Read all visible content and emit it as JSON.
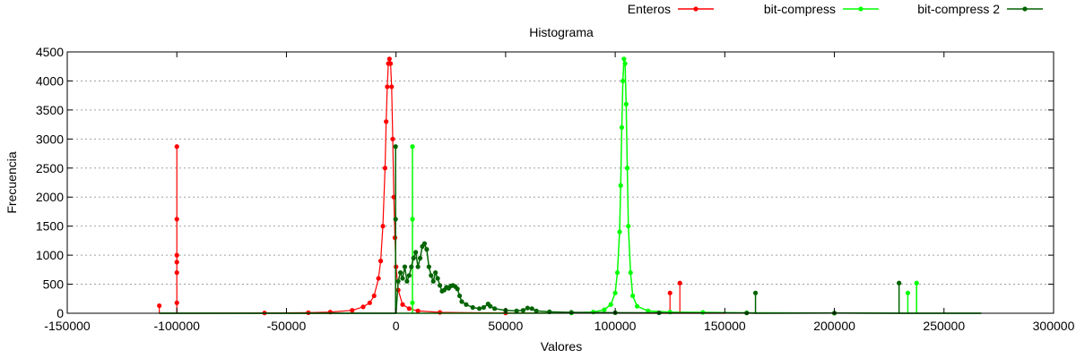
{
  "chart_data": {
    "type": "line",
    "title": "Histograma",
    "xlabel": "Valores",
    "ylabel": "Frecuencia",
    "xlim": [
      -150000,
      300000
    ],
    "ylim": [
      0,
      4500
    ],
    "x_ticks": [
      -150000,
      -100000,
      -50000,
      0,
      50000,
      100000,
      150000,
      200000,
      250000,
      300000
    ],
    "y_ticks": [
      0,
      500,
      1000,
      1500,
      2000,
      2500,
      3000,
      3500,
      4000,
      4500
    ],
    "grid": "horizontal dashed",
    "legend_position": "top-right, above plot",
    "series": [
      {
        "name": "Enteros",
        "color": "#ff0000",
        "points": [
          [
            -108000,
            0
          ],
          [
            -108000,
            130
          ],
          [
            -108000,
            0
          ],
          [
            -100000,
            0
          ],
          [
            -100000,
            180
          ],
          [
            -100000,
            700
          ],
          [
            -100000,
            880
          ],
          [
            -100000,
            1000
          ],
          [
            -100000,
            1620
          ],
          [
            -100000,
            2870
          ],
          [
            -100000,
            0
          ],
          [
            -90000,
            0
          ],
          [
            -60000,
            5
          ],
          [
            -40000,
            10
          ],
          [
            -30000,
            20
          ],
          [
            -20000,
            50
          ],
          [
            -15000,
            110
          ],
          [
            -12000,
            180
          ],
          [
            -10000,
            300
          ],
          [
            -8000,
            600
          ],
          [
            -7000,
            900
          ],
          [
            -6000,
            1500
          ],
          [
            -5000,
            2500
          ],
          [
            -4500,
            3300
          ],
          [
            -4000,
            3900
          ],
          [
            -3500,
            4300
          ],
          [
            -3000,
            4380
          ],
          [
            -2500,
            4300
          ],
          [
            -2000,
            3900
          ],
          [
            -1500,
            3000
          ],
          [
            -1000,
            2000
          ],
          [
            -500,
            1300
          ],
          [
            0,
            800
          ],
          [
            1000,
            400
          ],
          [
            3000,
            150
          ],
          [
            6000,
            80
          ],
          [
            10000,
            40
          ],
          [
            20000,
            15
          ],
          [
            50000,
            5
          ],
          [
            120000,
            0
          ],
          [
            125000,
            0
          ],
          [
            125000,
            350
          ],
          [
            125000,
            0
          ],
          [
            129500,
            0
          ],
          [
            129500,
            520
          ],
          [
            129500,
            0
          ],
          [
            150000,
            0
          ]
        ]
      },
      {
        "name": "bit-compress",
        "color": "#00ff00",
        "points": [
          [
            -108000,
            0
          ],
          [
            0,
            0
          ],
          [
            7500,
            0
          ],
          [
            7500,
            180
          ],
          [
            7500,
            1620
          ],
          [
            7500,
            2870
          ],
          [
            7500,
            0
          ],
          [
            60000,
            0
          ],
          [
            80000,
            5
          ],
          [
            90000,
            20
          ],
          [
            95000,
            60
          ],
          [
            98000,
            150
          ],
          [
            100000,
            350
          ],
          [
            101000,
            700
          ],
          [
            102000,
            1400
          ],
          [
            102500,
            2200
          ],
          [
            103000,
            3200
          ],
          [
            103500,
            4000
          ],
          [
            104000,
            4380
          ],
          [
            104500,
            4300
          ],
          [
            105000,
            3600
          ],
          [
            105500,
            2500
          ],
          [
            106000,
            1500
          ],
          [
            107000,
            700
          ],
          [
            108000,
            300
          ],
          [
            110000,
            120
          ],
          [
            115000,
            40
          ],
          [
            125000,
            20
          ],
          [
            140000,
            15
          ],
          [
            160000,
            8
          ],
          [
            200000,
            3
          ],
          [
            232000,
            0
          ],
          [
            233500,
            0
          ],
          [
            233500,
            350
          ],
          [
            233500,
            0
          ],
          [
            237500,
            0
          ],
          [
            237500,
            520
          ],
          [
            237500,
            0
          ],
          [
            267000,
            0
          ]
        ]
      },
      {
        "name": "bit-compress 2",
        "color": "#006400",
        "points": [
          [
            -108000,
            0
          ],
          [
            -1000,
            0
          ],
          [
            -200,
            0
          ],
          [
            -200,
            1620
          ],
          [
            -200,
            2870
          ],
          [
            -200,
            0
          ],
          [
            0,
            0
          ],
          [
            1000,
            550
          ],
          [
            2000,
            700
          ],
          [
            3000,
            600
          ],
          [
            4000,
            800
          ],
          [
            5000,
            550
          ],
          [
            6000,
            650
          ],
          [
            7000,
            800
          ],
          [
            8000,
            950
          ],
          [
            9000,
            1050
          ],
          [
            10000,
            800
          ],
          [
            11000,
            950
          ],
          [
            12000,
            1150
          ],
          [
            13000,
            1200
          ],
          [
            14000,
            1100
          ],
          [
            15000,
            800
          ],
          [
            16000,
            650
          ],
          [
            17000,
            550
          ],
          [
            18000,
            700
          ],
          [
            19000,
            600
          ],
          [
            20000,
            480
          ],
          [
            21000,
            380
          ],
          [
            22000,
            400
          ],
          [
            23000,
            450
          ],
          [
            24000,
            430
          ],
          [
            25000,
            470
          ],
          [
            26000,
            480
          ],
          [
            27000,
            460
          ],
          [
            28000,
            420
          ],
          [
            29000,
            300
          ],
          [
            30000,
            200
          ],
          [
            32000,
            150
          ],
          [
            35000,
            100
          ],
          [
            38000,
            80
          ],
          [
            40000,
            100
          ],
          [
            42000,
            160
          ],
          [
            43000,
            120
          ],
          [
            45000,
            80
          ],
          [
            50000,
            50
          ],
          [
            55000,
            40
          ],
          [
            58000,
            50
          ],
          [
            60000,
            90
          ],
          [
            62000,
            80
          ],
          [
            64000,
            40
          ],
          [
            70000,
            25
          ],
          [
            80000,
            15
          ],
          [
            100000,
            10
          ],
          [
            120000,
            8
          ],
          [
            160000,
            5
          ],
          [
            164000,
            0
          ],
          [
            164000,
            350
          ],
          [
            164000,
            0
          ],
          [
            200000,
            3
          ],
          [
            229500,
            0
          ],
          [
            229500,
            520
          ],
          [
            229500,
            0
          ],
          [
            267000,
            0
          ]
        ]
      }
    ]
  }
}
